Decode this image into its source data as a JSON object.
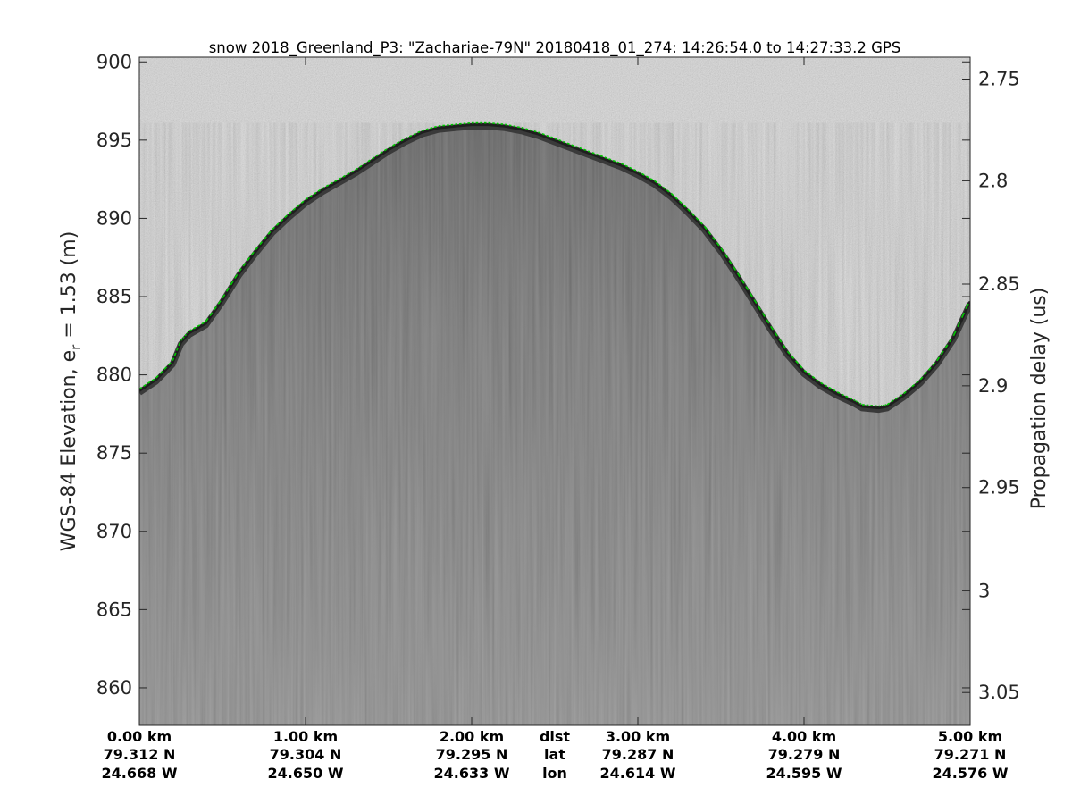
{
  "chart_data": {
    "type": "radar-echogram",
    "title": "snow 2018_Greenland_P3: \"Zachariae-79N\"  20180418_01_274: 14:26:54.0 to 14:27:33.2 GPS",
    "ylabel_left_prefix": "WGS-84 Elevation, e",
    "ylabel_left_subscript": "r",
    "ylabel_left_suffix": " = 1.53 (m)",
    "ylabel_right": "Propagation delay (us)",
    "ylim": [
      857.6,
      900.3
    ],
    "yticks_left": [
      860,
      865,
      870,
      875,
      880,
      885,
      890,
      895,
      900
    ],
    "right_axis": {
      "ticks": [
        {
          "label": "2.75",
          "elev": 898.9
        },
        {
          "label": "2.8",
          "elev": 892.4
        },
        {
          "label": "2.85",
          "elev": 885.8
        },
        {
          "label": "2.9",
          "elev": 879.3
        },
        {
          "label": "2.95",
          "elev": 872.8
        },
        {
          "label": "3",
          "elev": 866.2
        },
        {
          "label": "3.05",
          "elev": 859.7
        }
      ]
    },
    "xlim_km": [
      0,
      5
    ],
    "x_info_rows": [
      {
        "km": 0,
        "dist": "0.00 km",
        "lat": "79.312 N",
        "lon": "24.668 W"
      },
      {
        "km": 1,
        "dist": "1.00 km",
        "lat": "79.304 N",
        "lon": "24.650 W"
      },
      {
        "km": 2,
        "dist": "2.00 km",
        "lat": "79.295 N",
        "lon": "24.633 W"
      },
      {
        "km": 3,
        "dist": "3.00 km",
        "lat": "79.287 N",
        "lon": "24.614 W"
      },
      {
        "km": 4,
        "dist": "4.00 km",
        "lat": "79.279 N",
        "lon": "24.595 W"
      },
      {
        "km": 5,
        "dist": "5.00 km",
        "lat": "79.271 N",
        "lon": "24.576 W"
      }
    ],
    "x_row_labels": {
      "km": 2.5,
      "dist": "dist",
      "lat": "lat",
      "lon": "lon"
    },
    "surface_layer": {
      "color": "#00c800",
      "points": [
        {
          "x": 0.0,
          "y": 879.1
        },
        {
          "x": 0.1,
          "y": 879.8
        },
        {
          "x": 0.2,
          "y": 880.9
        },
        {
          "x": 0.25,
          "y": 882.2
        },
        {
          "x": 0.3,
          "y": 882.8
        },
        {
          "x": 0.4,
          "y": 883.4
        },
        {
          "x": 0.5,
          "y": 884.9
        },
        {
          "x": 0.6,
          "y": 886.6
        },
        {
          "x": 0.7,
          "y": 888.0
        },
        {
          "x": 0.8,
          "y": 889.3
        },
        {
          "x": 0.9,
          "y": 890.3
        },
        {
          "x": 1.0,
          "y": 891.2
        },
        {
          "x": 1.1,
          "y": 891.9
        },
        {
          "x": 1.2,
          "y": 892.5
        },
        {
          "x": 1.3,
          "y": 893.1
        },
        {
          "x": 1.4,
          "y": 893.8
        },
        {
          "x": 1.5,
          "y": 894.5
        },
        {
          "x": 1.6,
          "y": 895.1
        },
        {
          "x": 1.7,
          "y": 895.6
        },
        {
          "x": 1.8,
          "y": 895.9
        },
        {
          "x": 1.9,
          "y": 896.0
        },
        {
          "x": 2.0,
          "y": 896.1
        },
        {
          "x": 2.1,
          "y": 896.1
        },
        {
          "x": 2.2,
          "y": 896.0
        },
        {
          "x": 2.3,
          "y": 895.8
        },
        {
          "x": 2.4,
          "y": 895.5
        },
        {
          "x": 2.5,
          "y": 895.1
        },
        {
          "x": 2.6,
          "y": 894.7
        },
        {
          "x": 2.7,
          "y": 894.3
        },
        {
          "x": 2.8,
          "y": 893.9
        },
        {
          "x": 2.9,
          "y": 893.5
        },
        {
          "x": 3.0,
          "y": 893.0
        },
        {
          "x": 3.1,
          "y": 892.4
        },
        {
          "x": 3.2,
          "y": 891.6
        },
        {
          "x": 3.3,
          "y": 890.6
        },
        {
          "x": 3.4,
          "y": 889.5
        },
        {
          "x": 3.5,
          "y": 888.1
        },
        {
          "x": 3.6,
          "y": 886.5
        },
        {
          "x": 3.7,
          "y": 884.8
        },
        {
          "x": 3.8,
          "y": 883.1
        },
        {
          "x": 3.9,
          "y": 881.5
        },
        {
          "x": 4.0,
          "y": 880.3
        },
        {
          "x": 4.1,
          "y": 879.5
        },
        {
          "x": 4.2,
          "y": 878.9
        },
        {
          "x": 4.3,
          "y": 878.4
        },
        {
          "x": 4.35,
          "y": 878.1
        },
        {
          "x": 4.45,
          "y": 878.0
        },
        {
          "x": 4.5,
          "y": 878.1
        },
        {
          "x": 4.6,
          "y": 878.8
        },
        {
          "x": 4.7,
          "y": 879.7
        },
        {
          "x": 4.8,
          "y": 880.9
        },
        {
          "x": 4.9,
          "y": 882.5
        },
        {
          "x": 5.0,
          "y": 884.8
        }
      ]
    },
    "colormap": "gray",
    "grid": false,
    "legend": "none"
  }
}
